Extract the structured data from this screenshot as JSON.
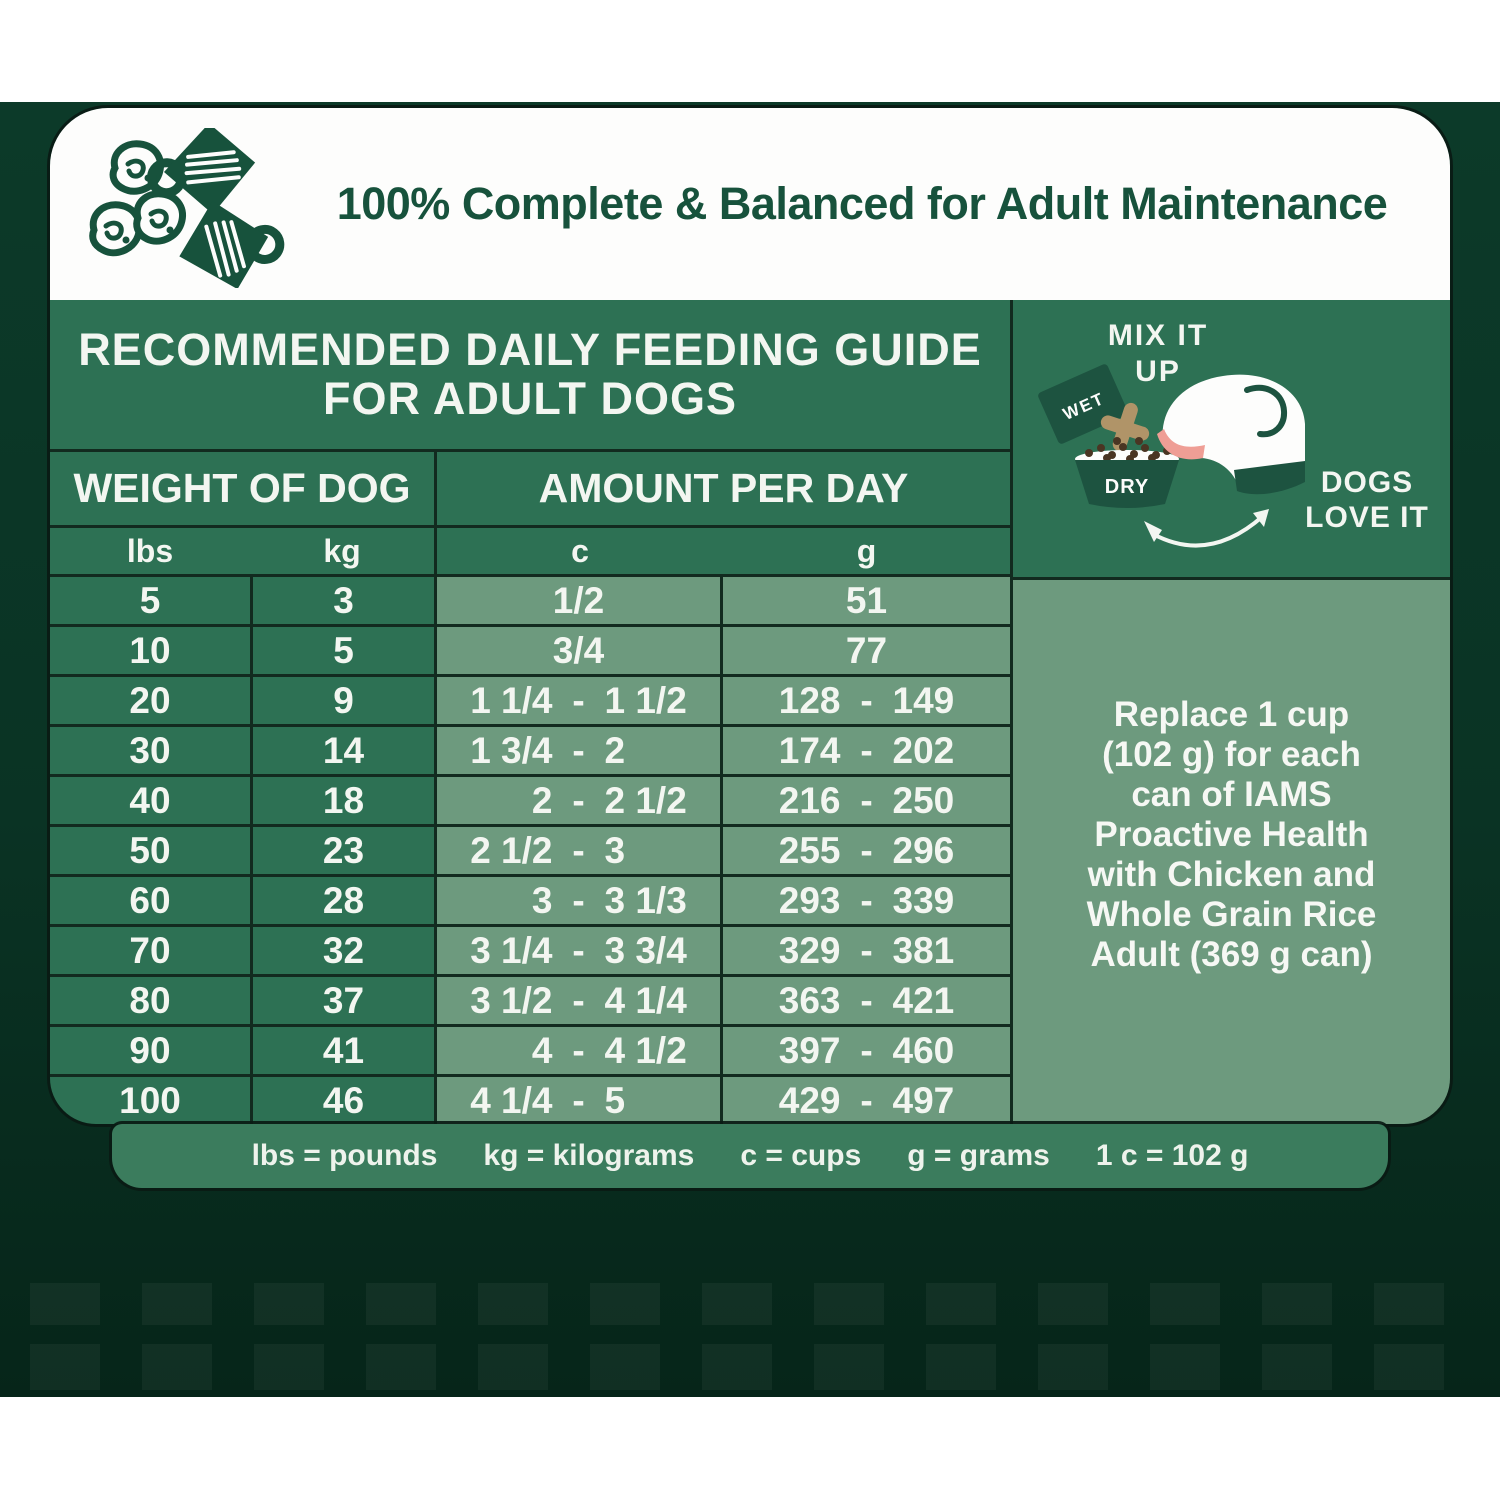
{
  "header": {
    "title": "100% Complete & Balanced for Adult Maintenance"
  },
  "table": {
    "title_line1": "RECOMMENDED DAILY FEEDING GUIDE",
    "title_line2": "FOR ADULT DOGS",
    "group_headers": [
      "WEIGHT OF DOG",
      "AMOUNT PER DAY"
    ],
    "unit_headers": [
      "lbs",
      "kg",
      "c",
      "g"
    ],
    "range_dash": "-",
    "rows": [
      {
        "lbs": "5",
        "kg": "3",
        "c": [
          "1/2"
        ],
        "g": [
          "51"
        ]
      },
      {
        "lbs": "10",
        "kg": "5",
        "c": [
          "3/4"
        ],
        "g": [
          "77"
        ]
      },
      {
        "lbs": "20",
        "kg": "9",
        "c": [
          "1 1/4",
          "1 1/2"
        ],
        "g": [
          "128",
          "149"
        ]
      },
      {
        "lbs": "30",
        "kg": "14",
        "c": [
          "1 3/4",
          "2"
        ],
        "g": [
          "174",
          "202"
        ]
      },
      {
        "lbs": "40",
        "kg": "18",
        "c": [
          "2",
          "2 1/2"
        ],
        "g": [
          "216",
          "250"
        ]
      },
      {
        "lbs": "50",
        "kg": "23",
        "c": [
          "2 1/2",
          "3"
        ],
        "g": [
          "255",
          "296"
        ]
      },
      {
        "lbs": "60",
        "kg": "28",
        "c": [
          "3",
          "3 1/3"
        ],
        "g": [
          "293",
          "339"
        ]
      },
      {
        "lbs": "70",
        "kg": "32",
        "c": [
          "3 1/4",
          "3 3/4"
        ],
        "g": [
          "329",
          "381"
        ]
      },
      {
        "lbs": "80",
        "kg": "37",
        "c": [
          "3 1/2",
          "4 1/4"
        ],
        "g": [
          "363",
          "421"
        ]
      },
      {
        "lbs": "90",
        "kg": "41",
        "c": [
          "4",
          "4 1/2"
        ],
        "g": [
          "397",
          "460"
        ]
      },
      {
        "lbs": "100",
        "kg": "46",
        "c": [
          "4 1/4",
          "5"
        ],
        "g": [
          "429",
          "497"
        ]
      }
    ]
  },
  "sidebar": {
    "mix_line1": "MIX IT",
    "mix_line2": "UP",
    "wet_label": "WET",
    "dry_label": "DRY",
    "love_line1": "DOGS",
    "love_line2": "LOVE IT",
    "replace_lines": [
      "Replace 1 cup",
      "(102 g) for each",
      "can of IAMS",
      "Proactive Health",
      "with Chicken and",
      "Whole Grain Rice",
      "Adult (369 g can)"
    ]
  },
  "legend": {
    "items": [
      "lbs = pounds",
      "kg = kilograms",
      "c = cups",
      "g = grams",
      "1 c = 102 g"
    ]
  },
  "colors": {
    "brand_dark_green": "#17523c",
    "panel_green": "#2d7154",
    "sage_green": "#6d9a7e",
    "footer_green": "#3b7c5d",
    "background_dark": "#0c3a29",
    "text_light": "#f3f6f1",
    "tongue_pink": "#ef9e95",
    "kibble_tan": "#b09468"
  }
}
